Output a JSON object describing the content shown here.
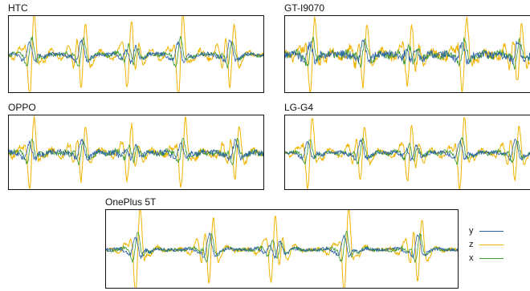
{
  "chart_data": {
    "type": "line",
    "colors": {
      "y": "#2b5fa6",
      "z": "#f0b400",
      "x": "#3e9c35"
    },
    "legend": {
      "placement": "bottom-right",
      "entries": [
        {
          "key": "y",
          "label": "y"
        },
        {
          "key": "z",
          "label": "z"
        },
        {
          "key": "x",
          "label": "x"
        }
      ]
    },
    "panels": [
      {
        "title": "HTC",
        "bursts": [
          0.09,
          0.28,
          0.48,
          0.67,
          0.86
        ],
        "amplitude": 0.92,
        "noise": 0.06,
        "clipped": false
      },
      {
        "title": "GT-I9070",
        "bursts": [
          0.11,
          0.31,
          0.51,
          0.72,
          0.93
        ],
        "amplitude": 0.85,
        "noise": 0.12,
        "clipped": true
      },
      {
        "title": "OPPO",
        "bursts": [
          0.09,
          0.28,
          0.48,
          0.68,
          0.88
        ],
        "amplitude": 0.8,
        "noise": 0.1,
        "clipped": false
      },
      {
        "title": "LG-G4",
        "bursts": [
          0.1,
          0.3,
          0.51,
          0.71,
          0.92
        ],
        "amplitude": 0.82,
        "noise": 0.07,
        "clipped": true
      },
      {
        "title": "OnePlus 5T",
        "bursts": [
          0.09,
          0.29,
          0.48,
          0.68,
          0.88
        ],
        "amplitude": 0.92,
        "noise": 0.05,
        "clipped": false
      }
    ]
  }
}
